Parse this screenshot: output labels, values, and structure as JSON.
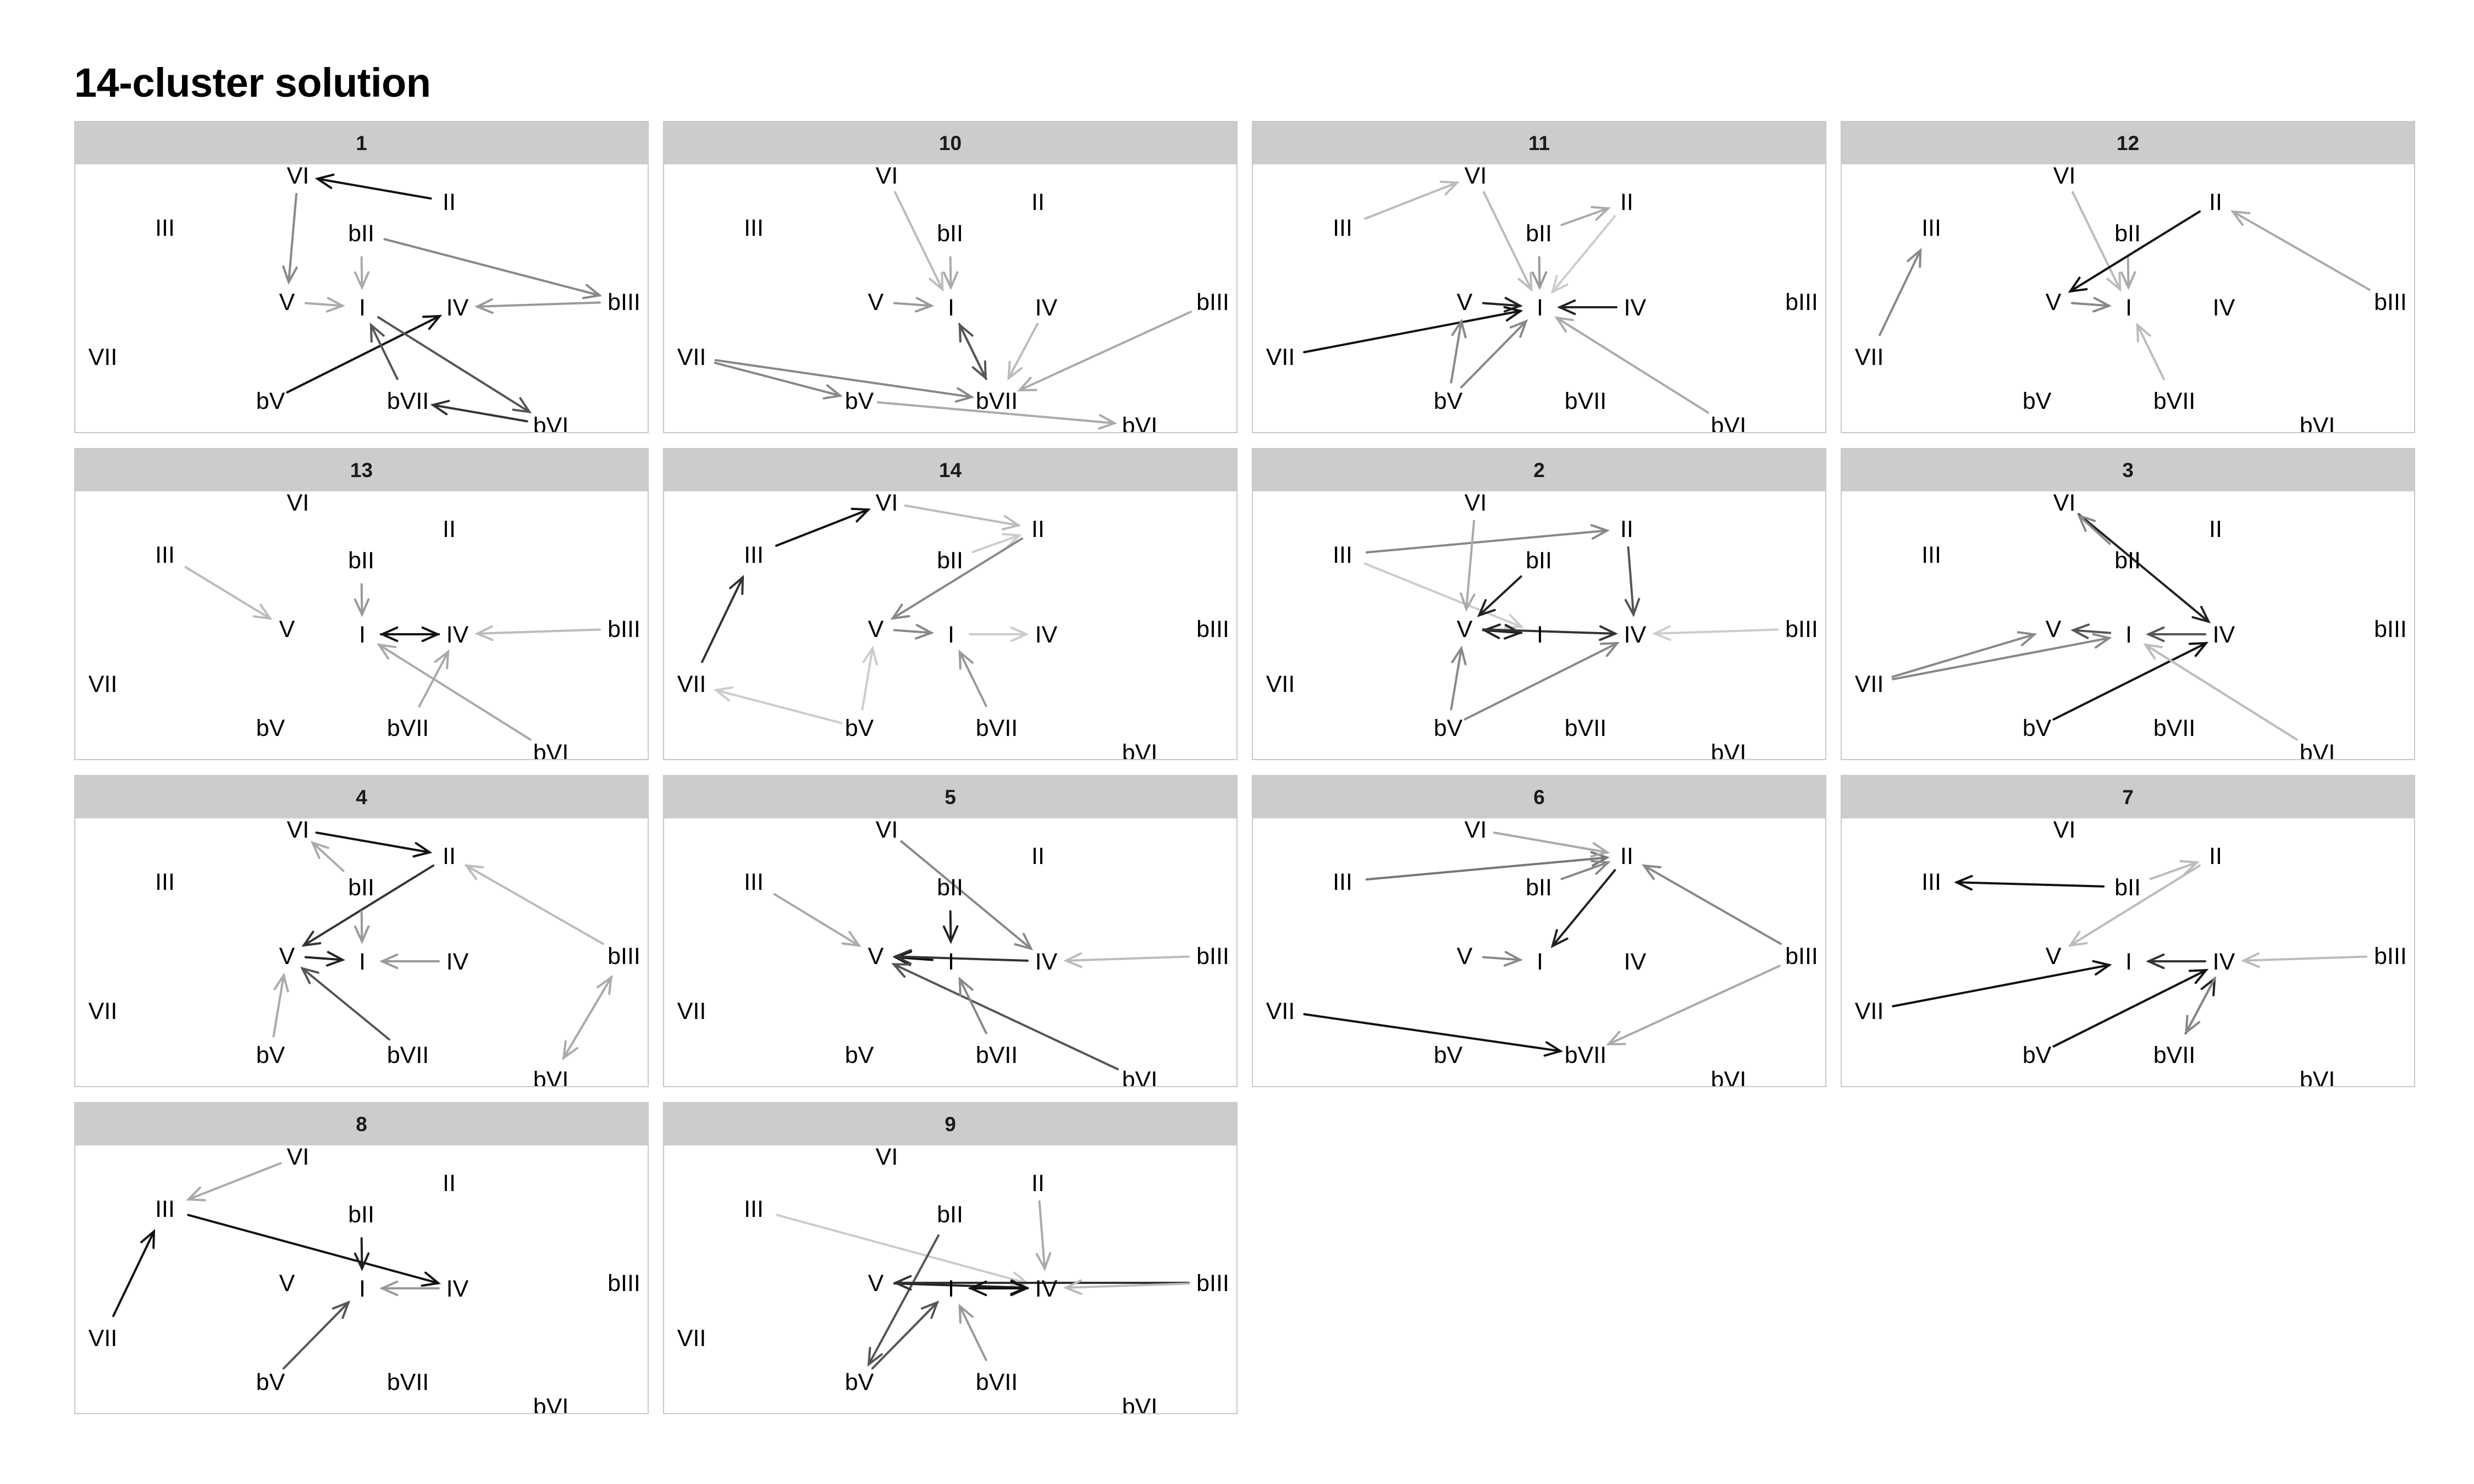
{
  "title": "14-cluster solution",
  "nodes": [
    "I",
    "bII",
    "II",
    "bIII",
    "III",
    "IV",
    "bV",
    "V",
    "bVI",
    "VI",
    "bVII",
    "VII"
  ],
  "panels": [
    {
      "label": "1",
      "edges": [
        {
          "from": "II",
          "to": "VI",
          "shade": "#111111"
        },
        {
          "from": "VI",
          "to": "V",
          "shade": "#888888"
        },
        {
          "from": "bII",
          "to": "I",
          "shade": "#aaaaaa"
        },
        {
          "from": "bII",
          "to": "bIII",
          "shade": "#888888"
        },
        {
          "from": "V",
          "to": "I",
          "shade": "#aaaaaa"
        },
        {
          "from": "bIII",
          "to": "IV",
          "shade": "#999999"
        },
        {
          "from": "bV",
          "to": "IV",
          "shade": "#111111"
        },
        {
          "from": "bVII",
          "to": "I",
          "shade": "#555555"
        },
        {
          "from": "I",
          "to": "bVI",
          "shade": "#555555"
        },
        {
          "from": "bVI",
          "to": "bVII",
          "shade": "#333333"
        }
      ]
    },
    {
      "label": "10",
      "edges": [
        {
          "from": "VI",
          "to": "I",
          "shade": "#bbbbbb"
        },
        {
          "from": "bII",
          "to": "I",
          "shade": "#aaaaaa"
        },
        {
          "from": "V",
          "to": "I",
          "shade": "#999999"
        },
        {
          "from": "I",
          "to": "bVII",
          "shade": "#555555"
        },
        {
          "from": "bVII",
          "to": "I",
          "shade": "#555555"
        },
        {
          "from": "IV",
          "to": "bVII",
          "shade": "#bbbbbb"
        },
        {
          "from": "bIII",
          "to": "bVII",
          "shade": "#aaaaaa"
        },
        {
          "from": "VII",
          "to": "bV",
          "shade": "#888888"
        },
        {
          "from": "VII",
          "to": "bVII",
          "shade": "#888888"
        },
        {
          "from": "bV",
          "to": "bVI",
          "shade": "#aaaaaa"
        }
      ]
    },
    {
      "label": "11",
      "edges": [
        {
          "from": "III",
          "to": "VI",
          "shade": "#bbbbbb"
        },
        {
          "from": "VI",
          "to": "I",
          "shade": "#bbbbbb"
        },
        {
          "from": "bII",
          "to": "II",
          "shade": "#aaaaaa"
        },
        {
          "from": "bII",
          "to": "I",
          "shade": "#999999"
        },
        {
          "from": "II",
          "to": "I",
          "shade": "#cccccc"
        },
        {
          "from": "V",
          "to": "I",
          "shade": "#222222"
        },
        {
          "from": "IV",
          "to": "I",
          "shade": "#222222"
        },
        {
          "from": "VII",
          "to": "I",
          "shade": "#111111"
        },
        {
          "from": "bV",
          "to": "V",
          "shade": "#888888"
        },
        {
          "from": "bV",
          "to": "I",
          "shade": "#888888"
        },
        {
          "from": "bVI",
          "to": "I",
          "shade": "#aaaaaa"
        }
      ]
    },
    {
      "label": "12",
      "edges": [
        {
          "from": "VI",
          "to": "I",
          "shade": "#bbbbbb"
        },
        {
          "from": "bII",
          "to": "I",
          "shade": "#aaaaaa"
        },
        {
          "from": "II",
          "to": "V",
          "shade": "#111111"
        },
        {
          "from": "V",
          "to": "I",
          "shade": "#888888"
        },
        {
          "from": "bIII",
          "to": "II",
          "shade": "#aaaaaa"
        },
        {
          "from": "VII",
          "to": "III",
          "shade": "#888888"
        },
        {
          "from": "bVII",
          "to": "I",
          "shade": "#bbbbbb"
        }
      ]
    },
    {
      "label": "13",
      "edges": [
        {
          "from": "III",
          "to": "V",
          "shade": "#bbbbbb"
        },
        {
          "from": "bII",
          "to": "I",
          "shade": "#999999"
        },
        {
          "from": "I",
          "to": "IV",
          "shade": "#111111"
        },
        {
          "from": "IV",
          "to": "I",
          "shade": "#111111"
        },
        {
          "from": "bIII",
          "to": "IV",
          "shade": "#bbbbbb"
        },
        {
          "from": "bVI",
          "to": "I",
          "shade": "#aaaaaa"
        },
        {
          "from": "bVII",
          "to": "IV",
          "shade": "#aaaaaa"
        }
      ]
    },
    {
      "label": "14",
      "edges": [
        {
          "from": "III",
          "to": "VI",
          "shade": "#111111"
        },
        {
          "from": "VII",
          "to": "III",
          "shade": "#333333"
        },
        {
          "from": "VI",
          "to": "II",
          "shade": "#bbbbbb"
        },
        {
          "from": "bII",
          "to": "II",
          "shade": "#cccccc"
        },
        {
          "from": "II",
          "to": "V",
          "shade": "#888888"
        },
        {
          "from": "V",
          "to": "I",
          "shade": "#888888"
        },
        {
          "from": "I",
          "to": "IV",
          "shade": "#cccccc"
        },
        {
          "from": "bV",
          "to": "VII",
          "shade": "#cccccc"
        },
        {
          "from": "bV",
          "to": "V",
          "shade": "#cccccc"
        },
        {
          "from": "bVII",
          "to": "I",
          "shade": "#999999"
        }
      ]
    },
    {
      "label": "2",
      "edges": [
        {
          "from": "III",
          "to": "II",
          "shade": "#888888"
        },
        {
          "from": "III",
          "to": "I",
          "shade": "#cccccc"
        },
        {
          "from": "VI",
          "to": "V",
          "shade": "#aaaaaa"
        },
        {
          "from": "bII",
          "to": "V",
          "shade": "#222222"
        },
        {
          "from": "II",
          "to": "IV",
          "shade": "#555555"
        },
        {
          "from": "V",
          "to": "I",
          "shade": "#222222"
        },
        {
          "from": "I",
          "to": "V",
          "shade": "#222222"
        },
        {
          "from": "V",
          "to": "IV",
          "shade": "#333333"
        },
        {
          "from": "bIII",
          "to": "IV",
          "shade": "#cccccc"
        },
        {
          "from": "bV",
          "to": "V",
          "shade": "#888888"
        },
        {
          "from": "bV",
          "to": "IV",
          "shade": "#888888"
        }
      ]
    },
    {
      "label": "3",
      "edges": [
        {
          "from": "VI",
          "to": "IV",
          "shade": "#222222"
        },
        {
          "from": "bII",
          "to": "VI",
          "shade": "#888888"
        },
        {
          "from": "VII",
          "to": "V",
          "shade": "#888888"
        },
        {
          "from": "VII",
          "to": "I",
          "shade": "#888888"
        },
        {
          "from": "I",
          "to": "V",
          "shade": "#555555"
        },
        {
          "from": "IV",
          "to": "I",
          "shade": "#555555"
        },
        {
          "from": "bV",
          "to": "IV",
          "shade": "#111111"
        },
        {
          "from": "bVI",
          "to": "I",
          "shade": "#bbbbbb"
        }
      ]
    },
    {
      "label": "4",
      "edges": [
        {
          "from": "VI",
          "to": "II",
          "shade": "#111111"
        },
        {
          "from": "II",
          "to": "V",
          "shade": "#333333"
        },
        {
          "from": "bII",
          "to": "VI",
          "shade": "#aaaaaa"
        },
        {
          "from": "bII",
          "to": "I",
          "shade": "#999999"
        },
        {
          "from": "V",
          "to": "I",
          "shade": "#222222"
        },
        {
          "from": "IV",
          "to": "I",
          "shade": "#999999"
        },
        {
          "from": "bIII",
          "to": "II",
          "shade": "#bbbbbb"
        },
        {
          "from": "bIII",
          "to": "bVI",
          "shade": "#aaaaaa"
        },
        {
          "from": "bVI",
          "to": "bIII",
          "shade": "#aaaaaa"
        },
        {
          "from": "bV",
          "to": "V",
          "shade": "#aaaaaa"
        },
        {
          "from": "bVII",
          "to": "V",
          "shade": "#555555"
        }
      ]
    },
    {
      "label": "5",
      "edges": [
        {
          "from": "III",
          "to": "V",
          "shade": "#aaaaaa"
        },
        {
          "from": "VI",
          "to": "IV",
          "shade": "#888888"
        },
        {
          "from": "bII",
          "to": "I",
          "shade": "#222222"
        },
        {
          "from": "I",
          "to": "V",
          "shade": "#111111"
        },
        {
          "from": "IV",
          "to": "V",
          "shade": "#333333"
        },
        {
          "from": "bIII",
          "to": "IV",
          "shade": "#bbbbbb"
        },
        {
          "from": "bVI",
          "to": "V",
          "shade": "#555555"
        },
        {
          "from": "bVII",
          "to": "I",
          "shade": "#888888"
        }
      ]
    },
    {
      "label": "6",
      "edges": [
        {
          "from": "III",
          "to": "II",
          "shade": "#777777"
        },
        {
          "from": "VI",
          "to": "II",
          "shade": "#aaaaaa"
        },
        {
          "from": "II",
          "to": "I",
          "shade": "#222222"
        },
        {
          "from": "bII",
          "to": "II",
          "shade": "#888888"
        },
        {
          "from": "V",
          "to": "I",
          "shade": "#888888"
        },
        {
          "from": "bIII",
          "to": "II",
          "shade": "#888888"
        },
        {
          "from": "bIII",
          "to": "bVII",
          "shade": "#aaaaaa"
        },
        {
          "from": "VII",
          "to": "bVII",
          "shade": "#111111"
        }
      ]
    },
    {
      "label": "7",
      "edges": [
        {
          "from": "bII",
          "to": "III",
          "shade": "#111111"
        },
        {
          "from": "bII",
          "to": "II",
          "shade": "#bbbbbb"
        },
        {
          "from": "II",
          "to": "V",
          "shade": "#bbbbbb"
        },
        {
          "from": "VII",
          "to": "I",
          "shade": "#111111"
        },
        {
          "from": "IV",
          "to": "I",
          "shade": "#333333"
        },
        {
          "from": "bIII",
          "to": "IV",
          "shade": "#bbbbbb"
        },
        {
          "from": "bV",
          "to": "IV",
          "shade": "#111111"
        },
        {
          "from": "bVII",
          "to": "IV",
          "shade": "#222222"
        },
        {
          "from": "IV",
          "to": "bVII",
          "shade": "#888888"
        }
      ]
    },
    {
      "label": "8",
      "edges": [
        {
          "from": "VI",
          "to": "III",
          "shade": "#aaaaaa"
        },
        {
          "from": "VII",
          "to": "III",
          "shade": "#111111"
        },
        {
          "from": "III",
          "to": "IV",
          "shade": "#111111"
        },
        {
          "from": "bII",
          "to": "I",
          "shade": "#222222"
        },
        {
          "from": "IV",
          "to": "I",
          "shade": "#999999"
        },
        {
          "from": "bV",
          "to": "I",
          "shade": "#555555"
        }
      ]
    },
    {
      "label": "9",
      "edges": [
        {
          "from": "III",
          "to": "IV",
          "shade": "#cccccc"
        },
        {
          "from": "bII",
          "to": "bV",
          "shade": "#555555"
        },
        {
          "from": "bV",
          "to": "I",
          "shade": "#555555"
        },
        {
          "from": "II",
          "to": "IV",
          "shade": "#aaaaaa"
        },
        {
          "from": "V",
          "to": "IV",
          "shade": "#222222"
        },
        {
          "from": "bIII",
          "to": "V",
          "shade": "#333333"
        },
        {
          "from": "bIII",
          "to": "IV",
          "shade": "#bbbbbb"
        },
        {
          "from": "I",
          "to": "IV",
          "shade": "#111111"
        },
        {
          "from": "IV",
          "to": "I",
          "shade": "#111111"
        },
        {
          "from": "bVII",
          "to": "I",
          "shade": "#999999"
        }
      ]
    }
  ]
}
